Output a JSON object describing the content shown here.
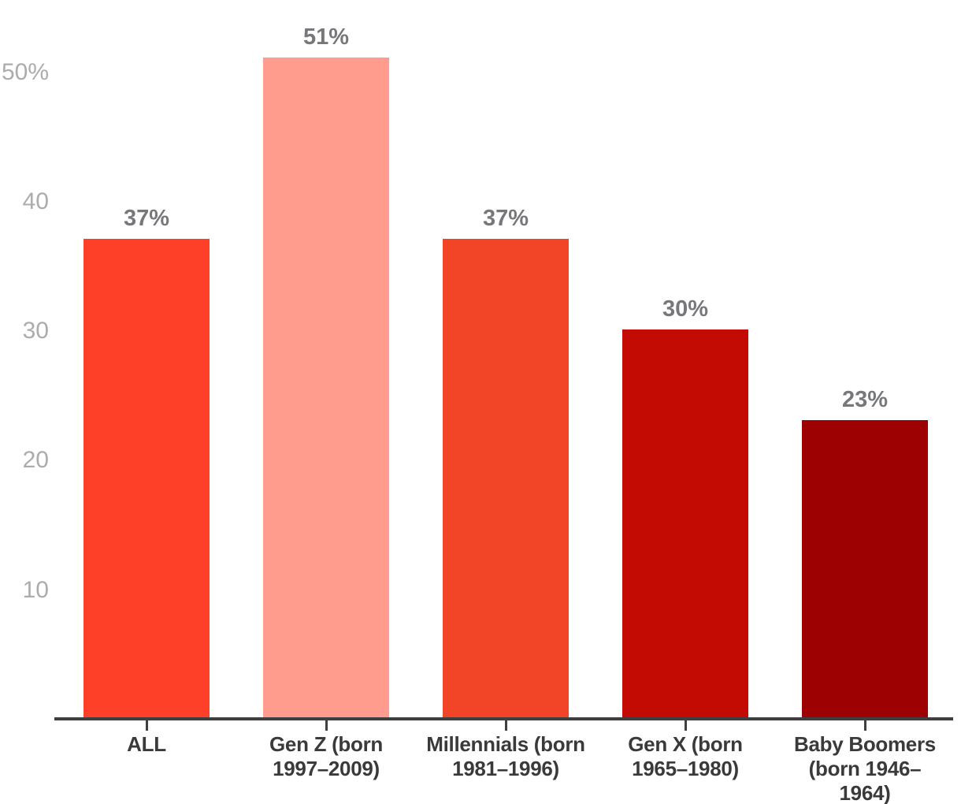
{
  "chart_data": {
    "type": "bar",
    "categories": [
      "ALL",
      "Gen Z (born 1997–2009)",
      "Millennials (born 1981–1996)",
      "Gen X (born 1965–1980)",
      "Baby Boomers (born 1946–1964)"
    ],
    "category_lines": [
      [
        "ALL"
      ],
      [
        "Gen Z (born",
        "1997–2009)"
      ],
      [
        "Millennials (born",
        "1981–1996)"
      ],
      [
        "Gen X (born",
        "1965–1980)"
      ],
      [
        "Baby Boomers",
        "(born 1946–",
        "1964)"
      ]
    ],
    "values": [
      37,
      51,
      37,
      30,
      23
    ],
    "value_labels": [
      "37%",
      "51%",
      "37%",
      "30%",
      "23%"
    ],
    "bar_colors": [
      "#FF4029",
      "#FF9C8D",
      "#F24527",
      "#C40B03",
      "#9E0101"
    ],
    "yticks": [
      {
        "value": 50,
        "label": "50%"
      },
      {
        "value": 40,
        "label": "40"
      },
      {
        "value": 30,
        "label": "30"
      },
      {
        "value": 20,
        "label": "20"
      },
      {
        "value": 10,
        "label": "10"
      }
    ],
    "title": "",
    "xlabel": "",
    "ylabel": "",
    "ylim": [
      0,
      55.5
    ],
    "grid": false,
    "legend": null,
    "colors": {
      "background": "#FFFFFF",
      "axis_line": "#3F3F41",
      "ytick_label": "#ACACAC",
      "value_label": "#77787B",
      "xtick_label": "#3A3A3C"
    }
  }
}
